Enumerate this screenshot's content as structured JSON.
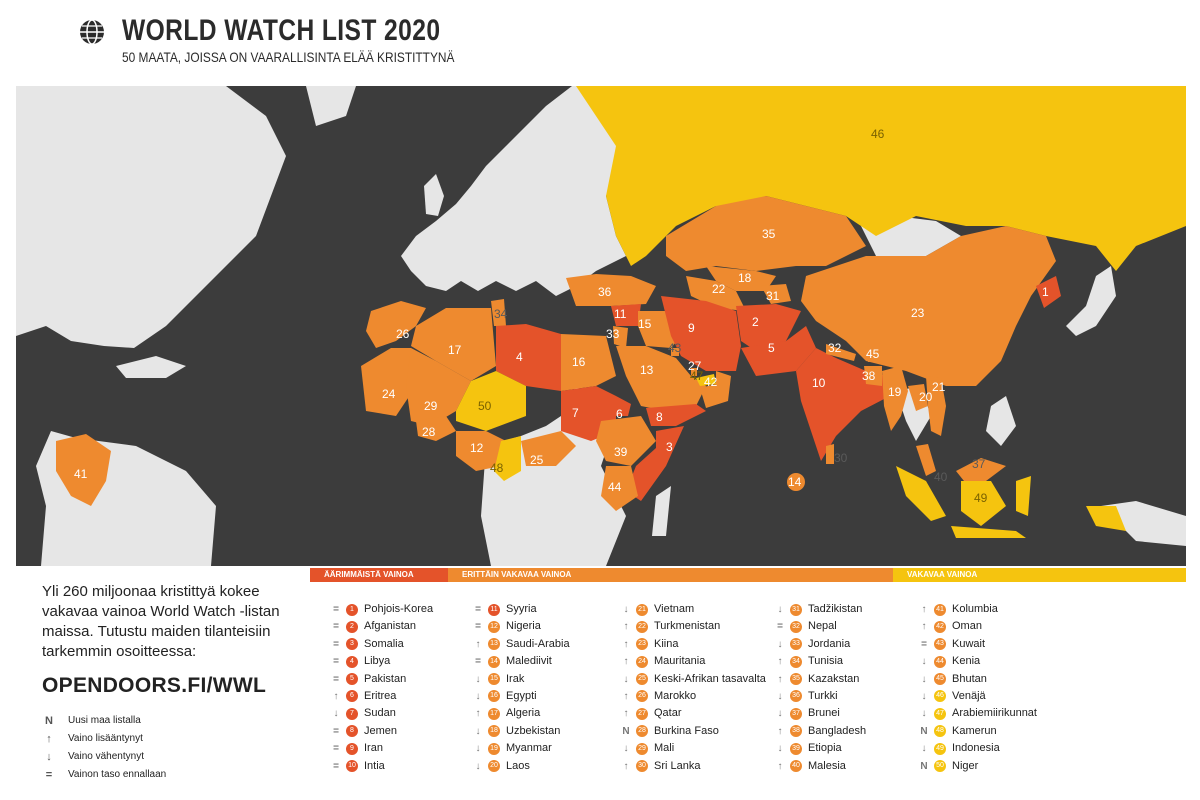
{
  "header": {
    "title": "WORLD WATCH LIST 2020",
    "subtitle": "50 MAATA, JOISSA ON VAARALLISINTA ELÄÄ KRISTITTYNÄ"
  },
  "colors": {
    "extreme": "#e4532a",
    "very_high": "#ee8a2f",
    "high": "#f5c40f",
    "other_land": "#e6e6e6",
    "sea": "#3c3c3c"
  },
  "bands": {
    "extreme": "ÄÄRIMMÄISTÄ VAINOA",
    "very_high": "ERITTÄIN VAKAVAA VAINOA",
    "high": "VAKAVAA VAINOA"
  },
  "promo": {
    "text": "Yli 260 miljoonaa kristittyä kokee vakavaa vainoa World Watch -listan maissa. Tutustu maiden tilanteisiin tarkemmin osoitteessa:",
    "url": "OPENDOORS.FI/WWL"
  },
  "legend": [
    {
      "symbol": "N",
      "icon": "new-icon",
      "label": "Uusi maa listalla"
    },
    {
      "symbol": "↑",
      "icon": "arrow-up-icon",
      "label": "Vaino lisääntynyt"
    },
    {
      "symbol": "↓",
      "icon": "arrow-down-icon",
      "label": "Vaino vähentynyt"
    },
    {
      "symbol": "=",
      "icon": "equals-icon",
      "label": "Vainon taso ennallaan"
    }
  ],
  "rankings": [
    [
      {
        "rank": "1",
        "name": "Pohjois-Korea",
        "trend": "=",
        "level": "extreme"
      },
      {
        "rank": "2",
        "name": "Afganistan",
        "trend": "=",
        "level": "extreme"
      },
      {
        "rank": "3",
        "name": "Somalia",
        "trend": "=",
        "level": "extreme"
      },
      {
        "rank": "4",
        "name": "Libya",
        "trend": "=",
        "level": "extreme"
      },
      {
        "rank": "5",
        "name": "Pakistan",
        "trend": "=",
        "level": "extreme"
      },
      {
        "rank": "6",
        "name": "Eritrea",
        "trend": "↑",
        "level": "extreme"
      },
      {
        "rank": "7",
        "name": "Sudan",
        "trend": "↓",
        "level": "extreme"
      },
      {
        "rank": "8",
        "name": "Jemen",
        "trend": "=",
        "level": "extreme"
      },
      {
        "rank": "9",
        "name": "Iran",
        "trend": "=",
        "level": "extreme"
      },
      {
        "rank": "10",
        "name": "Intia",
        "trend": "=",
        "level": "extreme"
      }
    ],
    [
      {
        "rank": "11",
        "name": "Syyria",
        "trend": "=",
        "level": "extreme"
      },
      {
        "rank": "12",
        "name": "Nigeria",
        "trend": "=",
        "level": "very_high"
      },
      {
        "rank": "13",
        "name": "Saudi-Arabia",
        "trend": "↑",
        "level": "very_high"
      },
      {
        "rank": "14",
        "name": "Malediivit",
        "trend": "=",
        "level": "very_high"
      },
      {
        "rank": "15",
        "name": "Irak",
        "trend": "↓",
        "level": "very_high"
      },
      {
        "rank": "16",
        "name": "Egypti",
        "trend": "↓",
        "level": "very_high"
      },
      {
        "rank": "17",
        "name": "Algeria",
        "trend": "↑",
        "level": "very_high"
      },
      {
        "rank": "18",
        "name": "Uzbekistan",
        "trend": "↓",
        "level": "very_high"
      },
      {
        "rank": "19",
        "name": "Myanmar",
        "trend": "↓",
        "level": "very_high"
      },
      {
        "rank": "20",
        "name": "Laos",
        "trend": "↓",
        "level": "very_high"
      }
    ],
    [
      {
        "rank": "21",
        "name": "Vietnam",
        "trend": "↓",
        "level": "very_high"
      },
      {
        "rank": "22",
        "name": "Turkmenistan",
        "trend": "↑",
        "level": "very_high"
      },
      {
        "rank": "23",
        "name": "Kiina",
        "trend": "↑",
        "level": "very_high"
      },
      {
        "rank": "24",
        "name": "Mauritania",
        "trend": "↑",
        "level": "very_high"
      },
      {
        "rank": "25",
        "name": "Keski-Afrikan tasavalta",
        "trend": "↓",
        "level": "very_high"
      },
      {
        "rank": "26",
        "name": "Marokko",
        "trend": "↑",
        "level": "very_high"
      },
      {
        "rank": "27",
        "name": "Qatar",
        "trend": "↑",
        "level": "very_high"
      },
      {
        "rank": "28",
        "name": "Burkina Faso",
        "trend": "N",
        "level": "very_high"
      },
      {
        "rank": "29",
        "name": "Mali",
        "trend": "↓",
        "level": "very_high"
      },
      {
        "rank": "30",
        "name": "Sri Lanka",
        "trend": "↑",
        "level": "very_high"
      }
    ],
    [
      {
        "rank": "31",
        "name": "Tadžikistan",
        "trend": "↓",
        "level": "very_high"
      },
      {
        "rank": "32",
        "name": "Nepal",
        "trend": "=",
        "level": "very_high"
      },
      {
        "rank": "33",
        "name": "Jordania",
        "trend": "↓",
        "level": "very_high"
      },
      {
        "rank": "34",
        "name": "Tunisia",
        "trend": "↑",
        "level": "very_high"
      },
      {
        "rank": "35",
        "name": "Kazakstan",
        "trend": "↑",
        "level": "very_high"
      },
      {
        "rank": "36",
        "name": "Turkki",
        "trend": "↓",
        "level": "very_high"
      },
      {
        "rank": "37",
        "name": "Brunei",
        "trend": "↓",
        "level": "very_high"
      },
      {
        "rank": "38",
        "name": "Bangladesh",
        "trend": "↑",
        "level": "very_high"
      },
      {
        "rank": "39",
        "name": "Etiopia",
        "trend": "↓",
        "level": "very_high"
      },
      {
        "rank": "40",
        "name": "Malesia",
        "trend": "↑",
        "level": "very_high"
      }
    ],
    [
      {
        "rank": "41",
        "name": "Kolumbia",
        "trend": "↑",
        "level": "very_high"
      },
      {
        "rank": "42",
        "name": "Oman",
        "trend": "↑",
        "level": "very_high"
      },
      {
        "rank": "43",
        "name": "Kuwait",
        "trend": "=",
        "level": "very_high"
      },
      {
        "rank": "44",
        "name": "Kenia",
        "trend": "↓",
        "level": "very_high"
      },
      {
        "rank": "45",
        "name": "Bhutan",
        "trend": "↓",
        "level": "very_high"
      },
      {
        "rank": "46",
        "name": "Venäjä",
        "trend": "↓",
        "level": "high"
      },
      {
        "rank": "47",
        "name": "Arabiemiirikunnat",
        "trend": "↓",
        "level": "high"
      },
      {
        "rank": "48",
        "name": "Kamerun",
        "trend": "N",
        "level": "high"
      },
      {
        "rank": "49",
        "name": "Indonesia",
        "trend": "↓",
        "level": "high"
      },
      {
        "rank": "50",
        "name": "Niger",
        "trend": "N",
        "level": "high"
      }
    ]
  ],
  "map_labels": {
    "north_korea": "1",
    "afghanistan": "2",
    "somalia": "3",
    "libya": "4",
    "pakistan": "5",
    "eritrea": "6",
    "sudan": "7",
    "yemen": "8",
    "iran": "9",
    "india": "10",
    "syria": "11",
    "nigeria": "12",
    "saudi": "13",
    "maldives": "14",
    "iraq": "15",
    "egypt": "16",
    "algeria": "17",
    "uzbekistan": "18",
    "myanmar": "19",
    "laos": "20",
    "vietnam": "21",
    "turkmenistan": "22",
    "china": "23",
    "mauritania": "24",
    "car": "25",
    "morocco": "26",
    "qatar": "27",
    "burkina": "28",
    "mali": "29",
    "srilanka": "30",
    "tajikistan": "31",
    "nepal": "32",
    "jordan": "33",
    "tunisia": "34",
    "kazakhstan": "35",
    "turkey": "36",
    "brunei": "37",
    "bangladesh": "38",
    "ethiopia": "39",
    "malaysia": "40",
    "colombia": "41",
    "oman": "42",
    "kuwait": "43",
    "kenya": "44",
    "bhutan": "45",
    "russia": "46",
    "uae": "47",
    "cameroon": "48",
    "indonesia": "49",
    "niger": "50"
  }
}
